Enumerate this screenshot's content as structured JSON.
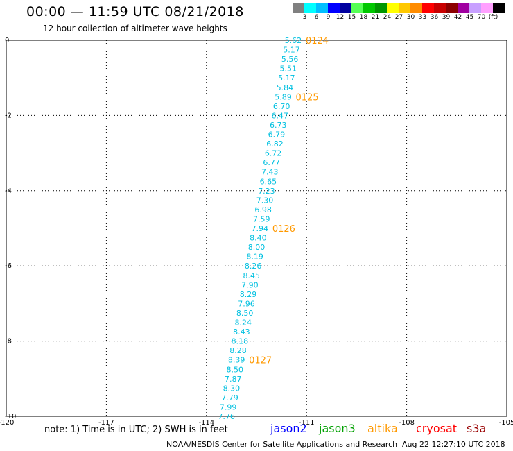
{
  "header": {
    "title": "00:00 — 11:59 UTC 08/21/2018",
    "subtitle": "12 hour collection of altimeter wave heights"
  },
  "colorbar": {
    "colors": [
      "#808080",
      "#00ffff",
      "#00bfff",
      "#0000ff",
      "#00009f",
      "#55ff55",
      "#00c800",
      "#009600",
      "#ffff00",
      "#ffc800",
      "#ff8c00",
      "#ff0000",
      "#c80000",
      "#8b0000",
      "#a000a0",
      "#c8a0ff",
      "#ffa0ff",
      "#000000"
    ],
    "labels": [
      "3",
      "6",
      "9",
      "12",
      "15",
      "18",
      "21",
      "24",
      "27",
      "30",
      "33",
      "36",
      "39",
      "42",
      "45",
      "70",
      "(ft)"
    ]
  },
  "chart_data": {
    "type": "scatter",
    "xlim": [
      -120,
      -105
    ],
    "ylim": [
      -10,
      0
    ],
    "x_ticks": [
      "-120",
      "-117",
      "-114",
      "-111",
      "-108",
      "-105"
    ],
    "y_ticks": [
      "0",
      "-2",
      "-4",
      "-6",
      "-8",
      "-10"
    ],
    "grid": true,
    "series": [
      {
        "name": "jason2",
        "color": "#00c0e0",
        "points": [
          {
            "x": -111.4,
            "y": 0.0,
            "label": "5.62"
          },
          {
            "x": -111.45,
            "y": -0.25,
            "label": "5.17"
          },
          {
            "x": -111.5,
            "y": -0.5,
            "label": "5.56"
          },
          {
            "x": -111.55,
            "y": -0.75,
            "label": "5.51"
          },
          {
            "x": -111.6,
            "y": -1.0,
            "label": "5.17"
          },
          {
            "x": -111.65,
            "y": -1.25,
            "label": "5.84"
          },
          {
            "x": -111.7,
            "y": -1.5,
            "label": "5.89"
          },
          {
            "x": -111.75,
            "y": -1.75,
            "label": "6.70"
          },
          {
            "x": -111.8,
            "y": -2.0,
            "label": "6.47"
          },
          {
            "x": -111.85,
            "y": -2.25,
            "label": "6.73"
          },
          {
            "x": -111.9,
            "y": -2.5,
            "label": "6.79"
          },
          {
            "x": -111.95,
            "y": -2.75,
            "label": "6.82"
          },
          {
            "x": -112.0,
            "y": -3.0,
            "label": "6.72"
          },
          {
            "x": -112.05,
            "y": -3.25,
            "label": "6.77"
          },
          {
            "x": -112.1,
            "y": -3.5,
            "label": "7.43"
          },
          {
            "x": -112.15,
            "y": -3.75,
            "label": "6.65"
          },
          {
            "x": -112.2,
            "y": -4.0,
            "label": "7.23"
          },
          {
            "x": -112.25,
            "y": -4.25,
            "label": "7.30"
          },
          {
            "x": -112.3,
            "y": -4.5,
            "label": "6.98"
          },
          {
            "x": -112.35,
            "y": -4.75,
            "label": "7.59"
          },
          {
            "x": -112.4,
            "y": -5.0,
            "label": "7.94"
          },
          {
            "x": -112.45,
            "y": -5.25,
            "label": "8.40"
          },
          {
            "x": -112.5,
            "y": -5.5,
            "label": "8.00"
          },
          {
            "x": -112.55,
            "y": -5.75,
            "label": "8.19"
          },
          {
            "x": -112.6,
            "y": -6.0,
            "label": "8.26"
          },
          {
            "x": -112.65,
            "y": -6.25,
            "label": "8.45"
          },
          {
            "x": -112.7,
            "y": -6.5,
            "label": "7.90"
          },
          {
            "x": -112.75,
            "y": -6.75,
            "label": "8.29"
          },
          {
            "x": -112.8,
            "y": -7.0,
            "label": "7.96"
          },
          {
            "x": -112.85,
            "y": -7.25,
            "label": "8.50"
          },
          {
            "x": -112.9,
            "y": -7.5,
            "label": "8.24"
          },
          {
            "x": -112.95,
            "y": -7.75,
            "label": "8.43"
          },
          {
            "x": -113.0,
            "y": -8.0,
            "label": "8.18"
          },
          {
            "x": -113.05,
            "y": -8.25,
            "label": "8.28"
          },
          {
            "x": -113.1,
            "y": -8.5,
            "label": "8.39"
          },
          {
            "x": -113.15,
            "y": -8.75,
            "label": "8.50"
          },
          {
            "x": -113.2,
            "y": -9.0,
            "label": "7.87"
          },
          {
            "x": -113.25,
            "y": -9.25,
            "label": "8.30"
          },
          {
            "x": -113.3,
            "y": -9.5,
            "label": "7.79"
          },
          {
            "x": -113.35,
            "y": -9.75,
            "label": "7.99"
          },
          {
            "x": -113.4,
            "y": -10.0,
            "label": "7.76"
          }
        ]
      }
    ],
    "time_annotations": {
      "color": "#ff9900",
      "points": [
        {
          "x": -111.4,
          "y": 0.0,
          "label": "0124"
        },
        {
          "x": -111.7,
          "y": -1.5,
          "label": "0125"
        },
        {
          "x": -112.4,
          "y": -5.0,
          "label": "0126"
        },
        {
          "x": -113.1,
          "y": -8.5,
          "label": "0127"
        }
      ]
    }
  },
  "note": {
    "text": "note: 1) Time is in UTC; 2) SWH is in feet"
  },
  "legend": [
    {
      "label": "jason2",
      "color": "#0000ff"
    },
    {
      "label": "jason3",
      "color": "#00a000"
    },
    {
      "label": "altika",
      "color": "#ff9900"
    },
    {
      "label": "cryosat",
      "color": "#ff0000"
    },
    {
      "label": "s3a",
      "color": "#990000"
    }
  ],
  "footer": {
    "credit": "NOAA/NESDIS Center for Satellite Applications and Research",
    "timestamp": "Aug 22 12:27:10 UTC 2018"
  }
}
